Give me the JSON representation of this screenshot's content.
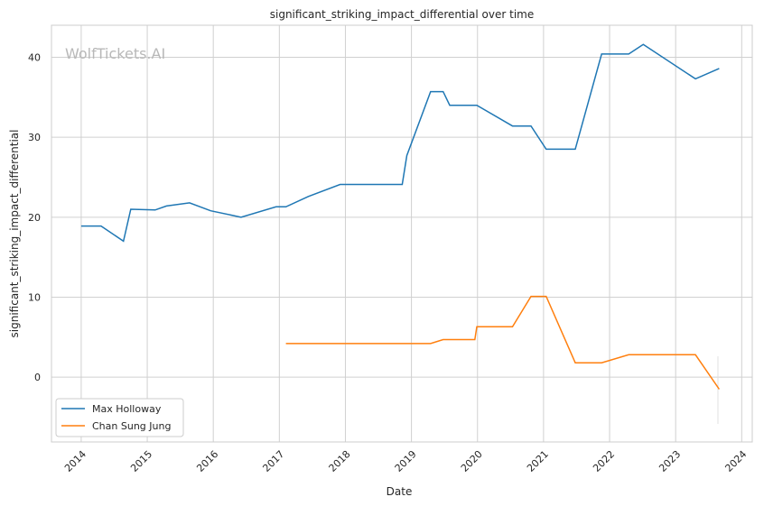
{
  "chart_data": {
    "type": "line",
    "title": "significant_striking_impact_differential over time",
    "xlabel": "Date",
    "ylabel": "significant_striking_impact_differential",
    "watermark": "WolfTickets.AI",
    "xlim": [
      2013.55,
      2024.16
    ],
    "ylim": [
      -8.1,
      44
    ],
    "xticks": [
      2014,
      2015,
      2016,
      2017,
      2018,
      2019,
      2020,
      2021,
      2022,
      2023,
      2024
    ],
    "xtick_labels": [
      "2014",
      "2015",
      "2016",
      "2017",
      "2018",
      "2019",
      "2020",
      "2021",
      "2022",
      "2023",
      "2024"
    ],
    "yticks": [
      0,
      10,
      20,
      30,
      40
    ],
    "ytick_labels": [
      "0",
      "10",
      "20",
      "30",
      "40"
    ],
    "grid": true,
    "legend_position": "lower-left",
    "series": [
      {
        "name": "Max Holloway",
        "color": "#1f77b4",
        "x": [
          2014.0,
          2014.3,
          2014.64,
          2014.75,
          2015.12,
          2015.29,
          2015.64,
          2015.96,
          2016.42,
          2016.95,
          2017.1,
          2017.44,
          2017.92,
          2018.86,
          2018.93,
          2019.29,
          2019.48,
          2019.58,
          2019.99,
          2020.53,
          2020.81,
          2021.04,
          2021.48,
          2021.88,
          2022.29,
          2022.51,
          2023.3,
          2023.66
        ],
        "y": [
          18.9,
          18.9,
          17.0,
          21.0,
          20.9,
          21.4,
          21.8,
          20.8,
          20.0,
          21.3,
          21.3,
          22.6,
          24.1,
          24.1,
          27.7,
          35.7,
          35.7,
          34.0,
          34.0,
          31.4,
          31.4,
          28.5,
          28.5,
          40.4,
          40.4,
          41.6,
          37.3,
          38.6
        ]
      },
      {
        "name": "Chan Sung Jung",
        "color": "#ff7f0e",
        "x": [
          2017.1,
          2019.29,
          2019.48,
          2019.96,
          2019.99,
          2020.53,
          2020.81,
          2021.04,
          2021.48,
          2021.88,
          2022.29,
          2023.3,
          2023.66
        ],
        "y": [
          4.2,
          4.2,
          4.7,
          4.7,
          6.3,
          6.3,
          10.1,
          10.1,
          1.8,
          1.8,
          2.8,
          2.8,
          -1.5
        ]
      }
    ]
  }
}
